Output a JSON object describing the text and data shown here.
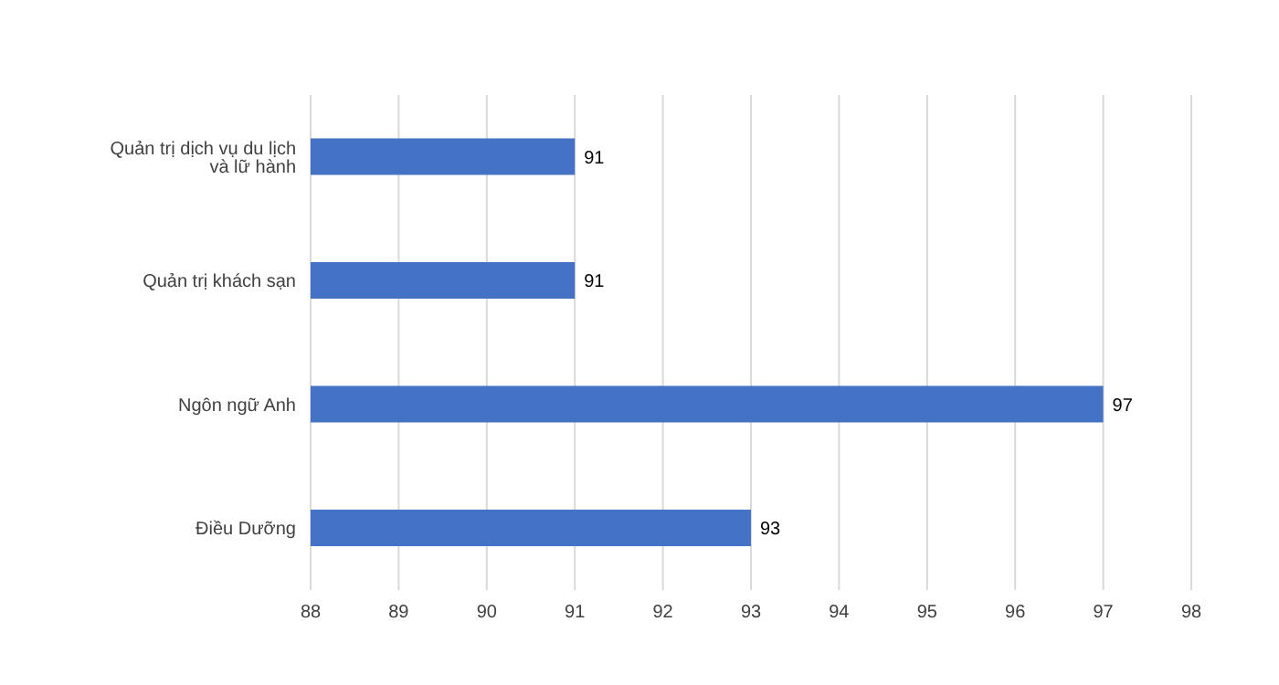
{
  "chart_data": {
    "type": "bar",
    "orientation": "horizontal",
    "categories": [
      "Quản trị dịch vụ du lịch và lữ hành",
      "Quản trị khách sạn",
      "Ngôn ngữ Anh",
      "Điều Dưỡng"
    ],
    "values": [
      91,
      91,
      97,
      93
    ],
    "color": "#4472c4",
    "xlim": [
      88,
      98
    ],
    "xticks": [
      88,
      89,
      90,
      91,
      92,
      93,
      94,
      95,
      96,
      97,
      98
    ],
    "grid": "x",
    "data_labels": true
  }
}
